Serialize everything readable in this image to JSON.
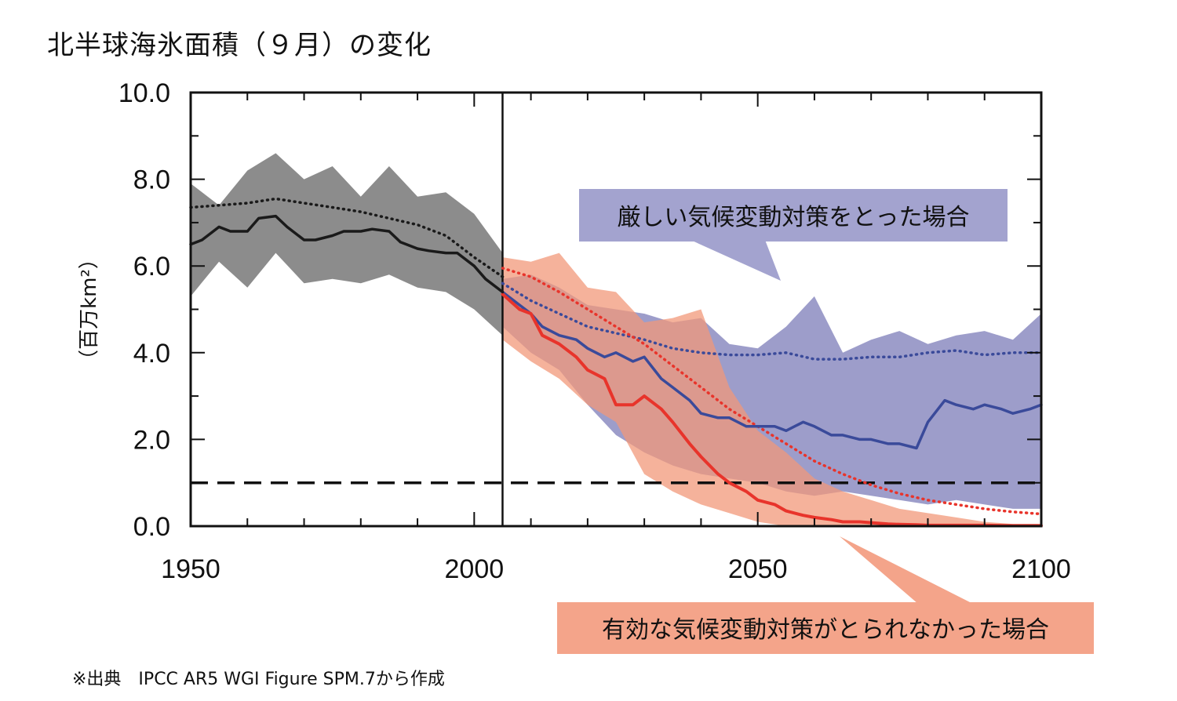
{
  "title": "北半球海氷面積（９月）の変化",
  "source": "※出典　IPCC AR5 WGI Figure SPM.7から作成",
  "colors": {
    "historical": "#1a1a1a",
    "historical_band": "#8c8c8c",
    "low_emission": "#3a4a9a",
    "low_band": "#9d9dca",
    "high_emission": "#e8342b",
    "high_band": "#f1987a",
    "callout_low_bg": "#a3a3cf",
    "callout_high_bg": "#f4a48a"
  },
  "callouts": {
    "low": "厳しい気候変動対策をとった場合",
    "high": "有効な気候変動対策がとられなかった場合"
  },
  "chart_data": {
    "type": "line",
    "title": "北半球海氷面積（９月）の変化",
    "xlabel": "",
    "ylabel": "（百万km²）",
    "xlim": [
      1950,
      2100
    ],
    "ylim": [
      0,
      10
    ],
    "x_ticks": [
      "1950",
      "2000",
      "2050",
      "2100"
    ],
    "y_ticks": [
      "0.0",
      "2.0",
      "4.0",
      "6.0",
      "8.0",
      "10.0"
    ],
    "reference_line": {
      "y": 1.0,
      "style": "dashed"
    },
    "divider_year": 2005,
    "grid": false,
    "series": [
      {
        "key": "historical_mean",
        "style": "solid",
        "x": [
          1950,
          1952,
          1955,
          1957,
          1960,
          1962,
          1965,
          1967,
          1970,
          1972,
          1975,
          1977,
          1980,
          1982,
          1985,
          1987,
          1990,
          1992,
          1995,
          1997,
          2000,
          2002,
          2005
        ],
        "values": [
          6.5,
          6.6,
          6.9,
          6.8,
          6.8,
          7.1,
          7.15,
          6.9,
          6.6,
          6.6,
          6.7,
          6.8,
          6.8,
          6.85,
          6.8,
          6.55,
          6.4,
          6.35,
          6.3,
          6.3,
          6.0,
          5.7,
          5.4
        ]
      },
      {
        "key": "historical_model_mean",
        "style": "dotted",
        "x": [
          1950,
          1955,
          1960,
          1965,
          1970,
          1975,
          1980,
          1985,
          1990,
          1995,
          2000,
          2005
        ],
        "values": [
          7.35,
          7.4,
          7.45,
          7.55,
          7.45,
          7.35,
          7.25,
          7.1,
          6.95,
          6.7,
          6.2,
          5.75
        ]
      },
      {
        "key": "historical_band",
        "band": true,
        "x": [
          1950,
          1955,
          1960,
          1965,
          1970,
          1975,
          1980,
          1985,
          1990,
          1995,
          2000,
          2005
        ],
        "upper": [
          7.9,
          7.4,
          8.2,
          8.6,
          8.0,
          8.3,
          7.6,
          8.3,
          7.6,
          7.7,
          7.2,
          6.3
        ],
        "lower": [
          5.3,
          6.1,
          5.5,
          6.3,
          5.6,
          5.7,
          5.6,
          5.8,
          5.5,
          5.4,
          5.0,
          4.4
        ]
      },
      {
        "key": "low_emission_mean",
        "style": "solid",
        "x": [
          2005,
          2008,
          2010,
          2012,
          2015,
          2018,
          2020,
          2023,
          2025,
          2028,
          2030,
          2033,
          2035,
          2038,
          2040,
          2043,
          2045,
          2048,
          2050,
          2053,
          2055,
          2058,
          2060,
          2063,
          2065,
          2068,
          2070,
          2073,
          2075,
          2078,
          2080,
          2083,
          2085,
          2088,
          2090,
          2093,
          2095,
          2098,
          2100
        ],
        "values": [
          5.4,
          5.1,
          4.9,
          4.6,
          4.4,
          4.3,
          4.1,
          3.9,
          4.0,
          3.8,
          3.9,
          3.4,
          3.2,
          2.9,
          2.6,
          2.5,
          2.5,
          2.3,
          2.3,
          2.3,
          2.2,
          2.4,
          2.3,
          2.1,
          2.1,
          2.0,
          2.0,
          1.9,
          1.9,
          1.8,
          2.4,
          2.9,
          2.8,
          2.7,
          2.8,
          2.7,
          2.6,
          2.7,
          2.8
        ]
      },
      {
        "key": "low_emission_model_mean",
        "style": "dotted",
        "x": [
          2005,
          2010,
          2015,
          2020,
          2025,
          2030,
          2035,
          2040,
          2045,
          2050,
          2055,
          2060,
          2065,
          2070,
          2075,
          2080,
          2085,
          2090,
          2095,
          2100
        ],
        "values": [
          5.6,
          5.2,
          4.9,
          4.6,
          4.45,
          4.3,
          4.1,
          4.0,
          3.95,
          3.95,
          4.0,
          3.85,
          3.85,
          3.9,
          3.9,
          4.0,
          4.05,
          3.95,
          4.0,
          4.0
        ]
      },
      {
        "key": "low_emission_band",
        "band": true,
        "x": [
          2005,
          2010,
          2015,
          2020,
          2025,
          2030,
          2035,
          2040,
          2045,
          2050,
          2055,
          2060,
          2065,
          2070,
          2075,
          2080,
          2085,
          2090,
          2095,
          2100
        ],
        "upper": [
          5.7,
          5.8,
          5.5,
          5.1,
          5.0,
          4.9,
          4.7,
          4.8,
          4.2,
          4.1,
          4.6,
          5.3,
          4.0,
          4.3,
          4.5,
          4.2,
          4.4,
          4.5,
          4.3,
          4.9
        ],
        "lower": [
          4.6,
          4.0,
          3.6,
          2.8,
          2.1,
          1.7,
          1.4,
          1.2,
          1.1,
          1.0,
          0.8,
          0.7,
          0.8,
          0.7,
          0.6,
          0.5,
          0.6,
          0.5,
          0.4,
          0.4
        ]
      },
      {
        "key": "high_emission_mean",
        "style": "solid",
        "x": [
          2005,
          2008,
          2010,
          2012,
          2015,
          2018,
          2020,
          2023,
          2025,
          2028,
          2030,
          2033,
          2035,
          2038,
          2040,
          2043,
          2045,
          2048,
          2050,
          2053,
          2055,
          2058,
          2060,
          2063,
          2065,
          2068,
          2070,
          2073,
          2075,
          2078,
          2080,
          2085,
          2090,
          2095,
          2100
        ],
        "values": [
          5.35,
          5.0,
          4.9,
          4.4,
          4.2,
          3.9,
          3.6,
          3.4,
          2.8,
          2.8,
          3.0,
          2.7,
          2.4,
          1.9,
          1.6,
          1.2,
          1.0,
          0.8,
          0.6,
          0.5,
          0.35,
          0.25,
          0.2,
          0.15,
          0.1,
          0.1,
          0.08,
          0.05,
          0.04,
          0.03,
          0.02,
          0.02,
          0.02,
          0.01,
          0.01
        ]
      },
      {
        "key": "high_emission_model_mean",
        "style": "dotted",
        "x": [
          2005,
          2010,
          2015,
          2020,
          2025,
          2030,
          2035,
          2040,
          2045,
          2050,
          2055,
          2060,
          2065,
          2070,
          2075,
          2080,
          2085,
          2090,
          2095,
          2100
        ],
        "values": [
          5.95,
          5.75,
          5.4,
          5.0,
          4.6,
          4.2,
          3.7,
          3.2,
          2.7,
          2.3,
          1.9,
          1.5,
          1.2,
          0.95,
          0.75,
          0.6,
          0.5,
          0.4,
          0.33,
          0.28
        ]
      },
      {
        "key": "high_emission_band",
        "band": true,
        "x": [
          2005,
          2010,
          2015,
          2020,
          2025,
          2030,
          2035,
          2040,
          2045,
          2050,
          2055,
          2060,
          2065,
          2070,
          2075,
          2080,
          2085,
          2090,
          2095,
          2100
        ],
        "upper": [
          6.2,
          6.1,
          6.3,
          5.5,
          5.4,
          4.7,
          4.8,
          5.0,
          3.2,
          2.2,
          1.7,
          1.1,
          0.8,
          0.6,
          0.4,
          0.3,
          0.2,
          0.1,
          0.05,
          0.05
        ],
        "lower": [
          4.3,
          3.8,
          3.4,
          2.8,
          2.4,
          1.2,
          0.8,
          0.5,
          0.3,
          0.1,
          0.0,
          0.0,
          0.0,
          0.0,
          0.0,
          0.0,
          0.0,
          0.0,
          0.0,
          0.0
        ]
      }
    ]
  }
}
